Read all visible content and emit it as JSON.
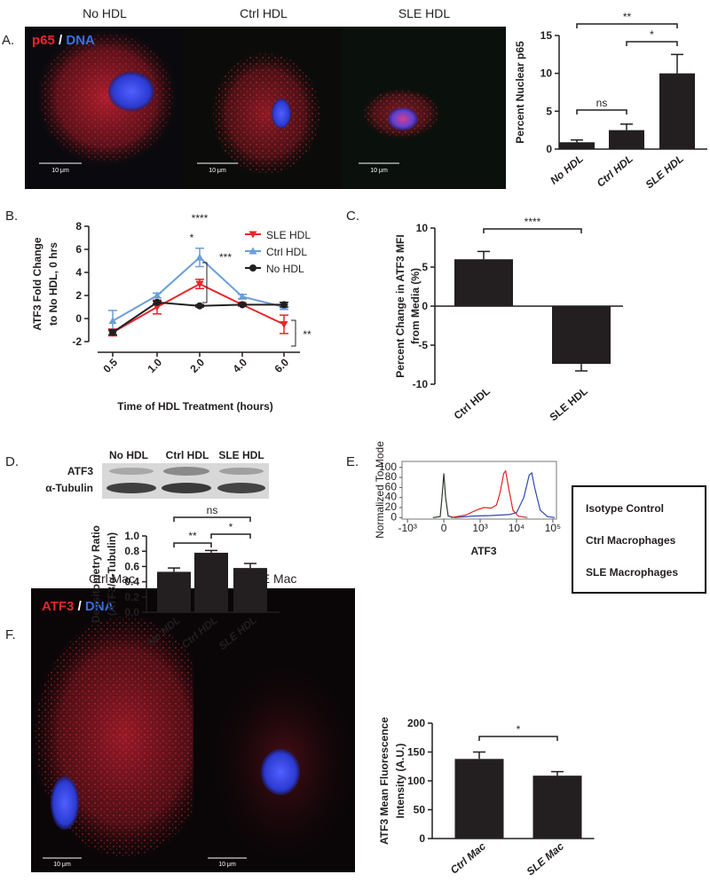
{
  "panel_labels": [
    "A.",
    "B.",
    "C.",
    "D.",
    "E.",
    "F."
  ],
  "images_a": {
    "titles": [
      "No HDL",
      "Ctrl HDL",
      "SLE HDL"
    ],
    "stain": [
      "p65",
      "/",
      "DNA"
    ],
    "scale_bars": [
      "10 μm",
      "10 μm",
      "10 μm"
    ]
  },
  "images_f": {
    "titles": [
      "Ctrl Mac",
      "SLE Mac"
    ],
    "stain": [
      "ATF3",
      "/",
      "DNA"
    ],
    "scale_bars": [
      "10 μm",
      "10 μm"
    ]
  },
  "blot": {
    "lanes": [
      "No HDL",
      "Ctrl HDL",
      "SLE HDL"
    ],
    "rows": [
      "ATF3",
      "α-Tubulin"
    ]
  },
  "chart_data": [
    {
      "type": "bar",
      "y_label": [
        "Percent Nuclear p65"
      ],
      "categories": [
        "No HDL",
        "Ctrl HDL",
        "SLE HDL"
      ],
      "values": [
        0.9,
        2.5,
        10
      ],
      "errors": [
        0.3,
        0.8,
        2.5
      ],
      "color": "#231f20",
      "ylim": [
        0,
        15
      ],
      "yticks": [
        0,
        5,
        10,
        15
      ],
      "brackets": [
        {
          "from": 0,
          "to": 1,
          "text": "ns"
        },
        {
          "from": 1,
          "to": 2,
          "text": "*"
        },
        {
          "from": 0,
          "to": 2,
          "text": "**"
        }
      ]
    },
    {
      "type": "line",
      "y_label": [
        "ATF3 Fold Change",
        "to No HDL, 0 hrs"
      ],
      "x_label": "Time of HDL Treatment (hours)",
      "categories": [
        "0.5",
        "1.0",
        "2.0",
        "4.0",
        "6.0"
      ],
      "series": [
        {
          "name": "SLE HDL",
          "color": "#e8262a",
          "marker": "triangle-down",
          "values": [
            -1.2,
            1.0,
            3.0,
            1.2,
            -0.5
          ],
          "errors": [
            0.3,
            0.6,
            0.4,
            0.1,
            0.8
          ]
        },
        {
          "name": "Ctrl HDL",
          "color": "#6a9fd8",
          "marker": "triangle-up",
          "values": [
            -0.2,
            2.0,
            5.3,
            1.9,
            1.0
          ],
          "errors": [
            0.9,
            0.2,
            0.8,
            0.2,
            0.2
          ]
        },
        {
          "name": "No HDL",
          "color": "#231f20",
          "marker": "circle",
          "values": [
            -1.2,
            1.4,
            1.1,
            1.2,
            1.2
          ],
          "errors": [
            0.2,
            0.1,
            0.1,
            0.1,
            0.2
          ]
        }
      ],
      "ylim": [
        -2,
        8
      ],
      "yticks": [
        -2,
        0,
        2,
        4,
        6,
        8
      ],
      "annotations": [
        "****",
        "*",
        "***",
        "**"
      ]
    },
    {
      "type": "bar",
      "y_label": [
        "Percent Change in ATF3 MFI",
        "from Media (%)"
      ],
      "categories": [
        "Ctrl HDL",
        "SLE HDL"
      ],
      "values": [
        6,
        -7.4
      ],
      "errors": [
        1.0,
        0.9
      ],
      "color": "#231f20",
      "ylim": [
        -10,
        10
      ],
      "yticks": [
        -10,
        -5,
        0,
        5,
        10
      ],
      "brackets": [
        {
          "from": 0,
          "to": 1,
          "text": "****"
        }
      ]
    },
    {
      "type": "bar",
      "y_label": [
        "Densitometry Ratio",
        "(ATF3/α-Tubulin)"
      ],
      "categories": [
        "No HDL",
        "Ctrl HDL",
        "SLE HDL"
      ],
      "values": [
        0.53,
        0.78,
        0.58
      ],
      "errors": [
        0.05,
        0.03,
        0.06
      ],
      "color": "#231f20",
      "ylim": [
        0,
        1.0
      ],
      "yticks": [
        {
          "value": 0,
          "label": "0.0"
        },
        0.2,
        0.4,
        0.6,
        0.8,
        {
          "value": 1.0,
          "label": "1.0"
        }
      ],
      "brackets": [
        {
          "from": 0,
          "to": 1,
          "text": "**"
        },
        {
          "from": 1,
          "to": 2,
          "text": "*"
        },
        {
          "from": 0,
          "to": 2,
          "text": "ns"
        }
      ]
    },
    {
      "type": "density",
      "y_label": [
        "Normalized To Mode"
      ],
      "x_label": "ATF3",
      "series": [
        {
          "name": "Isotype Control",
          "color": "#2d3a2d",
          "x": [
            -0.3,
            -0.1,
            -0.05,
            0,
            0.05,
            0.12,
            0.3
          ],
          "values": [
            0,
            2,
            40,
            88,
            40,
            3,
            0
          ]
        },
        {
          "name": "Ctrl Macrophages",
          "color": "#2a48b0",
          "x": [
            0.3,
            0.8,
            1.3,
            1.8,
            2.0,
            2.2,
            2.35,
            2.42,
            2.5,
            2.65,
            2.85,
            3.05
          ],
          "values": [
            0,
            3,
            4,
            6,
            10,
            40,
            85,
            89,
            60,
            15,
            2,
            0
          ]
        },
        {
          "name": "SLE Macrophages",
          "color": "#e0261c",
          "x": [
            0.2,
            0.6,
            0.9,
            1.1,
            1.3,
            1.45,
            1.55,
            1.65,
            1.7,
            1.78,
            1.9,
            2.05,
            2.3
          ],
          "values": [
            0,
            5,
            15,
            20,
            19,
            25,
            50,
            88,
            93,
            60,
            15,
            3,
            0
          ]
        }
      ],
      "xlim": [
        -1.15,
        3.1
      ],
      "xticks": [
        {
          "value": -1,
          "label": "-10³"
        },
        0,
        {
          "value": 1,
          "label": "10³"
        },
        {
          "value": 2,
          "label": "10⁴"
        },
        {
          "value": 3,
          "label": "10⁵"
        }
      ],
      "ylim": [
        -3,
        112
      ],
      "yticks": [
        0,
        20,
        40,
        60,
        80,
        100
      ]
    },
    {
      "type": "bar",
      "y_label": [
        "ATF3 Mean Fluorescence",
        "Intensity (A.U.)"
      ],
      "categories": [
        "Ctrl Mac",
        "SLE Mac"
      ],
      "values": [
        138,
        109
      ],
      "errors": [
        12,
        7
      ],
      "color": "#231f20",
      "ylim": [
        0,
        200
      ],
      "yticks": [
        0,
        50,
        100,
        150,
        200
      ],
      "brackets": [
        {
          "from": 0,
          "to": 1,
          "text": "*"
        }
      ]
    }
  ]
}
